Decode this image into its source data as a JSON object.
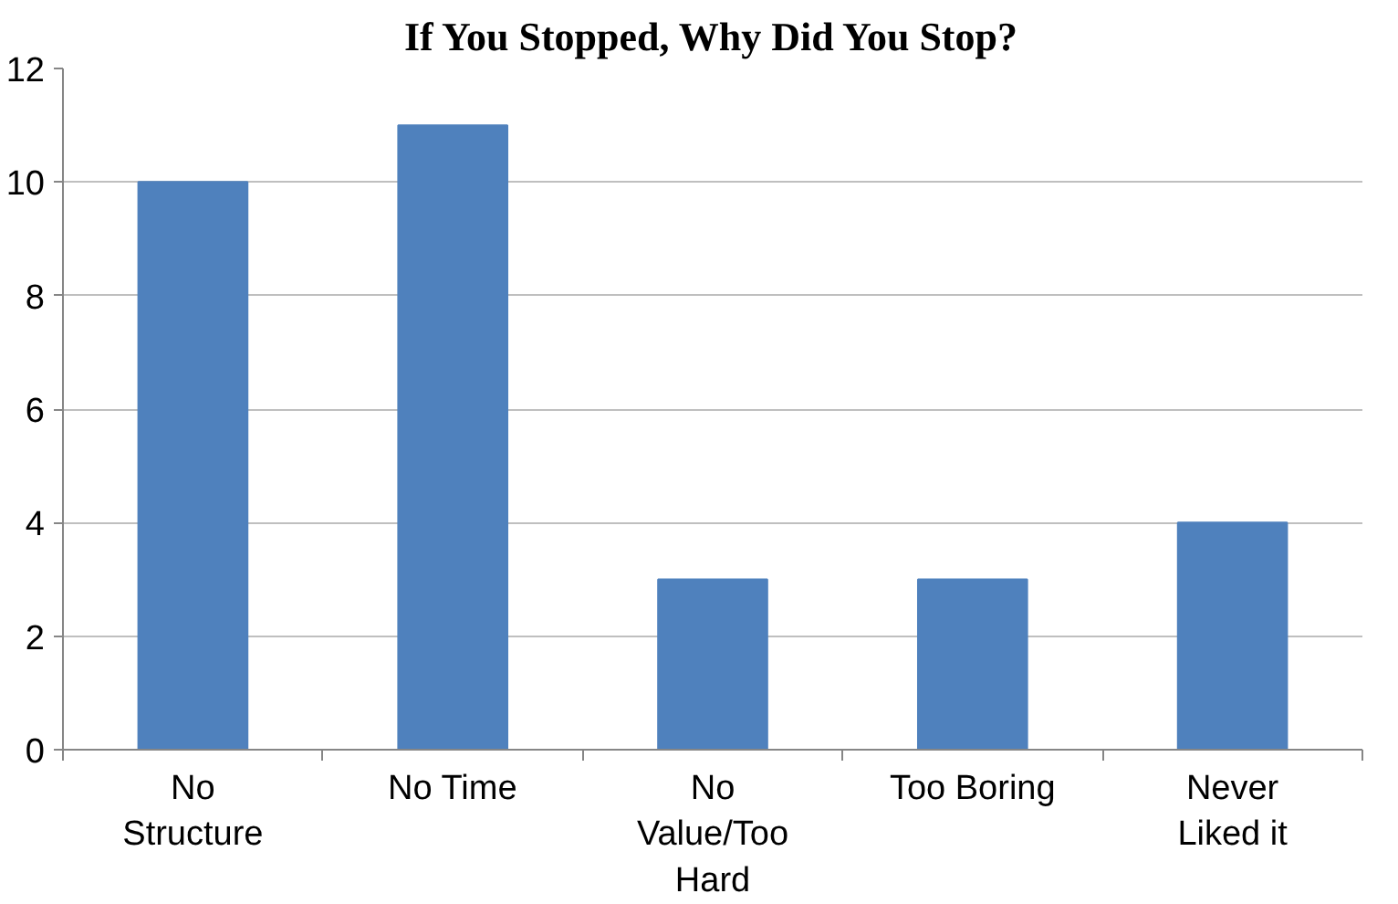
{
  "chart_data": {
    "type": "bar",
    "title": "If You Stopped, Why Did You Stop?",
    "categories": [
      "No Structure",
      "No Time",
      "No Value/Too Hard",
      "Too Boring",
      "Never Liked it"
    ],
    "values": [
      10,
      11,
      3,
      3,
      4
    ],
    "color": "#4f81bd",
    "ylim": [
      0,
      12
    ],
    "yticks": [
      0,
      2,
      4,
      6,
      8,
      10,
      12
    ],
    "grid": "y"
  }
}
